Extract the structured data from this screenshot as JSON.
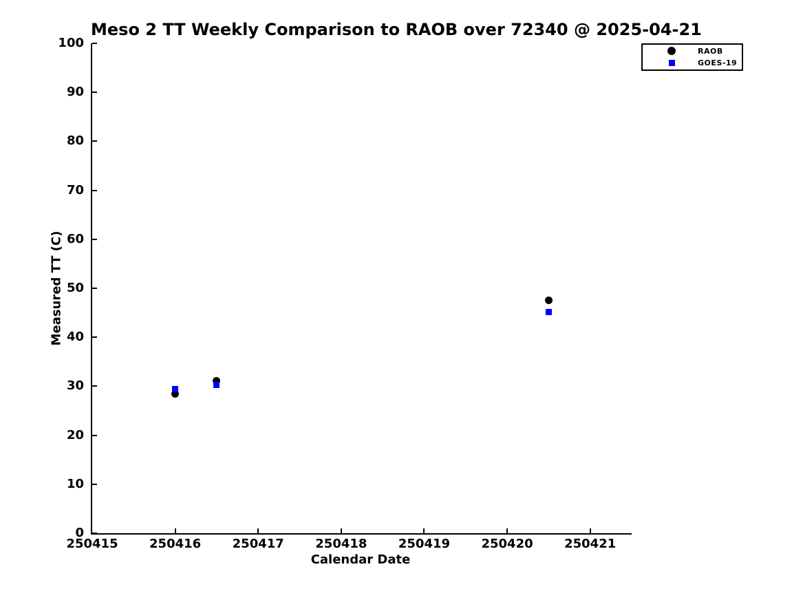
{
  "chart_data": {
    "type": "scatter",
    "title": "Meso 2 TT Weekly Comparison to RAOB over 72340 @ 2025-04-21",
    "xlabel": "Calendar Date",
    "ylabel": "Measured TT (C)",
    "xlim": [
      250415,
      250421.5
    ],
    "ylim": [
      0,
      100
    ],
    "x_ticks": [
      250415,
      250416,
      250417,
      250418,
      250419,
      250420,
      250421
    ],
    "y_ticks": [
      0,
      10,
      20,
      30,
      40,
      50,
      60,
      70,
      80,
      90,
      100
    ],
    "grid": false,
    "legend_position": "top-right",
    "series": [
      {
        "name": "RAOB",
        "marker": "circle",
        "color": "#000000",
        "x": [
          250416.0,
          250416.5,
          250420.5
        ],
        "y": [
          28.5,
          31.1,
          47.5
        ]
      },
      {
        "name": "GOES-19",
        "marker": "square",
        "color": "#0000ff",
        "x": [
          250416.0,
          250416.5,
          250420.5
        ],
        "y": [
          29.4,
          30.2,
          45.2
        ]
      }
    ]
  }
}
